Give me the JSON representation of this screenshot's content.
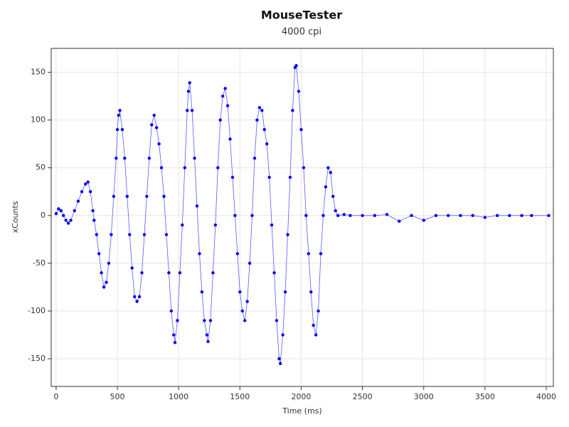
{
  "chart_data": {
    "type": "scatter-line",
    "title": "MouseTester",
    "subtitle": "4000 cpi",
    "x_label": "Time (ms)",
    "y_label": "xCounts",
    "color": "#0000ff",
    "line_color": "#5a5aff",
    "grid": true,
    "xlim": [
      -40,
      4058
    ],
    "ylim": [
      -179,
      175
    ],
    "xticks": [
      0,
      500,
      1000,
      1500,
      2000,
      2500,
      3000,
      3500,
      4000
    ],
    "yticks": [
      -150,
      -100,
      -50,
      0,
      50,
      100,
      150
    ],
    "x": [
      0,
      20,
      40,
      60,
      80,
      100,
      120,
      150,
      180,
      210,
      240,
      260,
      280,
      300,
      310,
      330,
      350,
      370,
      390,
      410,
      430,
      450,
      470,
      490,
      500,
      510,
      520,
      540,
      560,
      580,
      600,
      620,
      640,
      660,
      680,
      700,
      720,
      740,
      760,
      780,
      800,
      820,
      840,
      860,
      880,
      900,
      920,
      940,
      960,
      970,
      990,
      1010,
      1030,
      1050,
      1070,
      1080,
      1090,
      1110,
      1130,
      1150,
      1170,
      1190,
      1210,
      1230,
      1240,
      1260,
      1280,
      1300,
      1320,
      1340,
      1360,
      1380,
      1400,
      1420,
      1440,
      1460,
      1480,
      1500,
      1520,
      1540,
      1560,
      1580,
      1600,
      1620,
      1640,
      1660,
      1680,
      1700,
      1720,
      1740,
      1760,
      1780,
      1800,
      1820,
      1830,
      1850,
      1870,
      1890,
      1910,
      1930,
      1950,
      1960,
      1980,
      2000,
      2020,
      2040,
      2060,
      2080,
      2100,
      2120,
      2140,
      2160,
      2180,
      2200,
      2220,
      2240,
      2260,
      2280,
      2300,
      2350,
      2400,
      2500,
      2600,
      2700,
      2800,
      2900,
      3000,
      3100,
      3200,
      3300,
      3400,
      3500,
      3600,
      3700,
      3800,
      3880,
      4020
    ],
    "values": [
      2,
      7,
      5,
      0,
      -5,
      -8,
      -5,
      5,
      15,
      25,
      33,
      35,
      25,
      5,
      -5,
      -20,
      -40,
      -60,
      -75,
      -70,
      -50,
      -20,
      20,
      60,
      90,
      105,
      110,
      90,
      60,
      20,
      -20,
      -55,
      -85,
      -90,
      -85,
      -60,
      -20,
      20,
      60,
      95,
      105,
      92,
      75,
      50,
      20,
      -20,
      -60,
      -100,
      -125,
      -133,
      -110,
      -60,
      -10,
      50,
      110,
      130,
      139,
      110,
      60,
      10,
      -40,
      -80,
      -110,
      -125,
      -132,
      -110,
      -60,
      -10,
      50,
      100,
      125,
      133,
      115,
      80,
      40,
      0,
      -40,
      -80,
      -100,
      -110,
      -90,
      -50,
      0,
      60,
      100,
      113,
      110,
      90,
      75,
      40,
      -10,
      -60,
      -110,
      -150,
      -155,
      -125,
      -80,
      -20,
      40,
      110,
      155,
      157,
      130,
      90,
      50,
      0,
      -40,
      -80,
      -115,
      -125,
      -100,
      -40,
      0,
      30,
      50,
      45,
      20,
      5,
      0,
      1,
      0,
      0,
      0,
      1,
      -6,
      0,
      -5,
      0,
      0,
      0,
      0,
      -2,
      0,
      0,
      0,
      0,
      0
    ]
  }
}
